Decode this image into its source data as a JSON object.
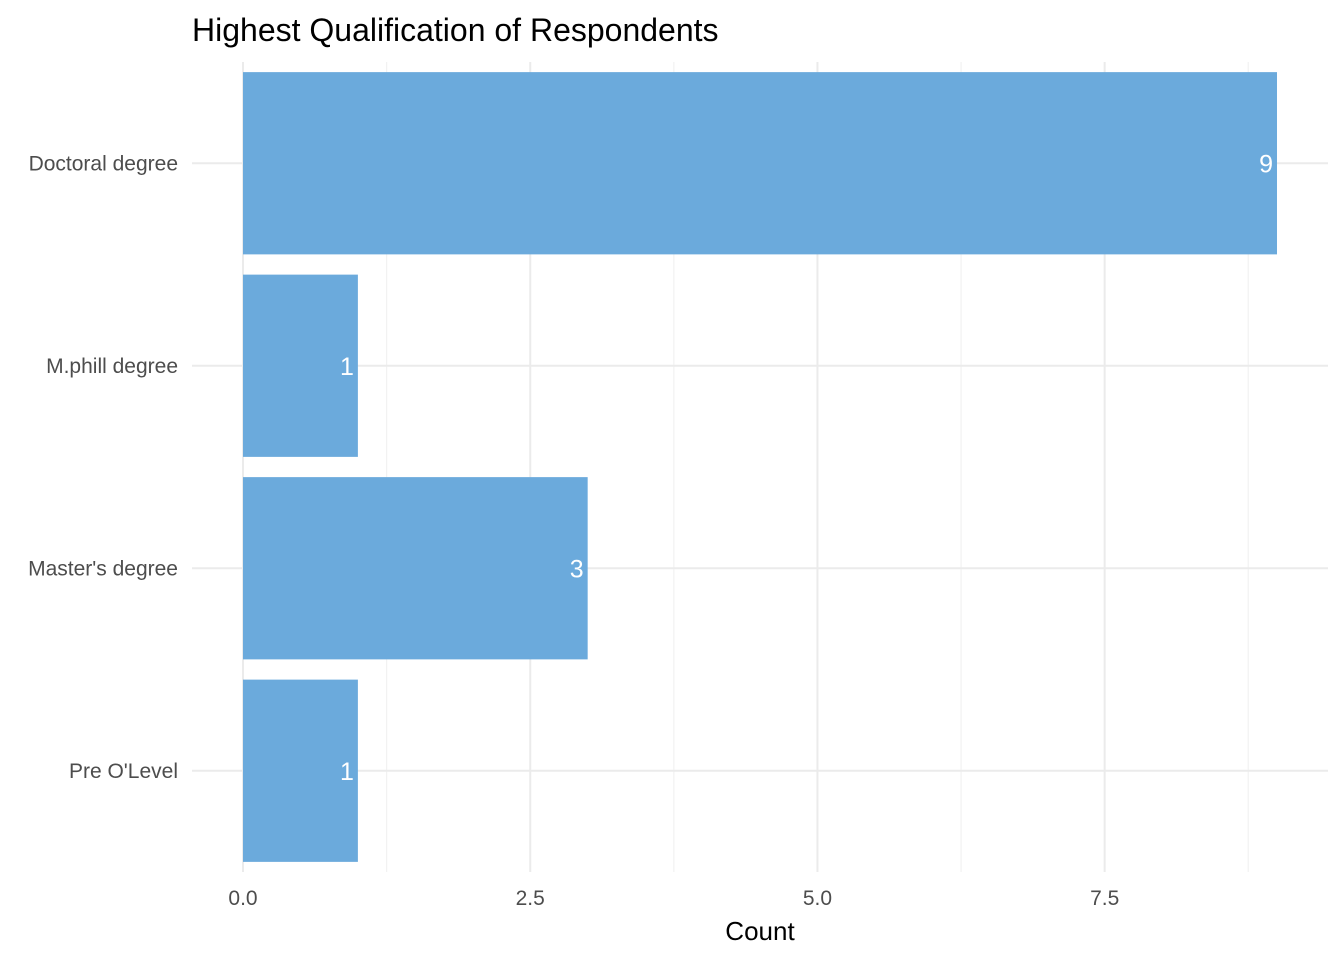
{
  "chart_data": {
    "type": "bar",
    "orientation": "horizontal",
    "title": "Highest Qualification of Respondents",
    "xlabel": "Count",
    "ylabel": "",
    "categories": [
      "Doctoral degree",
      "M.phill degree",
      "Master's degree",
      "Pre O'Level"
    ],
    "values": [
      9,
      1,
      3,
      1
    ],
    "data_labels": [
      "9",
      "1",
      "3",
      "1"
    ],
    "xlim": [
      0,
      9
    ],
    "x_ticks": [
      0,
      2.5,
      5,
      7.5
    ],
    "x_tick_labels": [
      "0.0",
      "2.5",
      "5.0",
      "7.5"
    ],
    "grid": true,
    "legend": "none",
    "bar_color": "#6BAADC",
    "label_color": "#ffffff"
  }
}
